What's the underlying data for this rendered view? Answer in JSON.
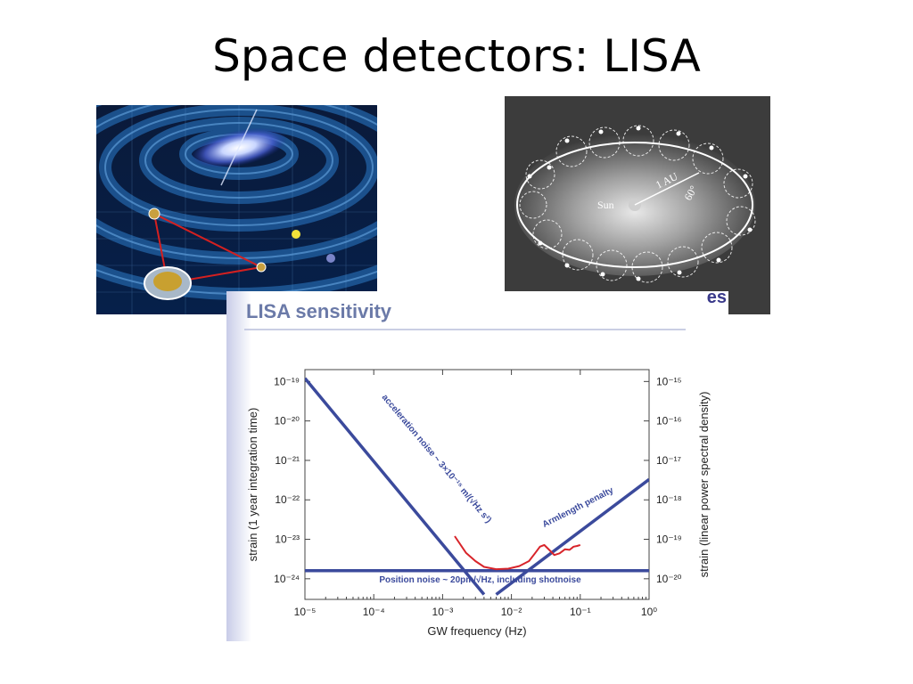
{
  "slide": {
    "title": "Space detectors: LISA"
  },
  "orbit_figure": {
    "sun_label": "Sun",
    "distance_label": "1 AU",
    "angle_label": "60°"
  },
  "chart_card": {
    "title": "LISA sensitivity",
    "logo_text": "es"
  },
  "chart_data": {
    "type": "line",
    "title": "LISA sensitivity",
    "xlabel": "GW frequency (Hz)",
    "ylabel": "strain (1 year integration time)",
    "ylabel_right": "strain (linear power spectral density)",
    "x_scale": "log",
    "y_scale": "log",
    "xlim": [
      1e-05,
      1
    ],
    "ylim": [
      3e-25,
      2e-19
    ],
    "x_ticks": [
      {
        "value": 1e-05,
        "label": "10⁻⁵"
      },
      {
        "value": 0.0001,
        "label": "10⁻⁴"
      },
      {
        "value": 0.001,
        "label": "10⁻³"
      },
      {
        "value": 0.01,
        "label": "10⁻²"
      },
      {
        "value": 0.1,
        "label": "10⁻¹"
      },
      {
        "value": 1,
        "label": "10⁰"
      }
    ],
    "y_ticks_left": [
      {
        "value": 1e-19,
        "label": "10⁻¹⁹"
      },
      {
        "value": 1e-20,
        "label": "10⁻²⁰"
      },
      {
        "value": 1e-21,
        "label": "10⁻²¹"
      },
      {
        "value": 1e-22,
        "label": "10⁻²²"
      },
      {
        "value": 1e-23,
        "label": "10⁻²³"
      },
      {
        "value": 1e-24,
        "label": "10⁻²⁴"
      }
    ],
    "y_ticks_right": [
      {
        "value": 1e-19,
        "label": "10⁻¹⁵"
      },
      {
        "value": 1e-20,
        "label": "10⁻¹⁶"
      },
      {
        "value": 1e-21,
        "label": "10⁻¹⁷"
      },
      {
        "value": 1e-22,
        "label": "10⁻¹⁸"
      },
      {
        "value": 1e-23,
        "label": "10⁻¹⁹"
      },
      {
        "value": 1e-24,
        "label": "10⁻²⁰"
      }
    ],
    "colors": {
      "noise": "#3b4a9c",
      "sensitivity": "#d8242a"
    },
    "series": [
      {
        "role": "acceleration",
        "x": [
          1e-05,
          0.004
        ],
        "y": [
          1.2e-19,
          4e-25
        ]
      },
      {
        "role": "position",
        "x": [
          1e-05,
          1
        ],
        "y": [
          1.6e-24,
          1.6e-24
        ]
      },
      {
        "role": "armlength",
        "x": [
          0.006,
          1
        ],
        "y": [
          4e-25,
          3.3e-22
        ]
      },
      {
        "role": "sensitivity",
        "x": [
          0.0015,
          0.0022,
          0.003,
          0.004,
          0.006,
          0.009,
          0.013,
          0.018,
          0.022,
          0.026,
          0.03,
          0.035,
          0.042,
          0.05,
          0.06,
          0.07,
          0.08,
          0.09,
          0.1
        ],
        "y": [
          1.2e-23,
          4.5e-24,
          2.8e-24,
          2e-24,
          1.75e-24,
          1.8e-24,
          2.1e-24,
          2.8e-24,
          4.4e-24,
          6.5e-24,
          7.2e-24,
          5.5e-24,
          4e-24,
          4.4e-24,
          5.6e-24,
          5.4e-24,
          6.5e-24,
          6.8e-24,
          7.2e-24
        ]
      }
    ],
    "annotations": [
      {
        "text": "acceleration noise ~ 3×10⁻¹⁵ m/(√Hz s²)",
        "x": 0.00013,
        "y": 4e-20,
        "rotate": 50
      },
      {
        "text": "Position noise ~ 20pm/√Hz, including shotnoise",
        "x": 0.00012,
        "y": 8e-25,
        "rotate": 0
      },
      {
        "text": "Armlength penalty",
        "x": 0.03,
        "y": 2e-23,
        "rotate": -27
      }
    ]
  }
}
